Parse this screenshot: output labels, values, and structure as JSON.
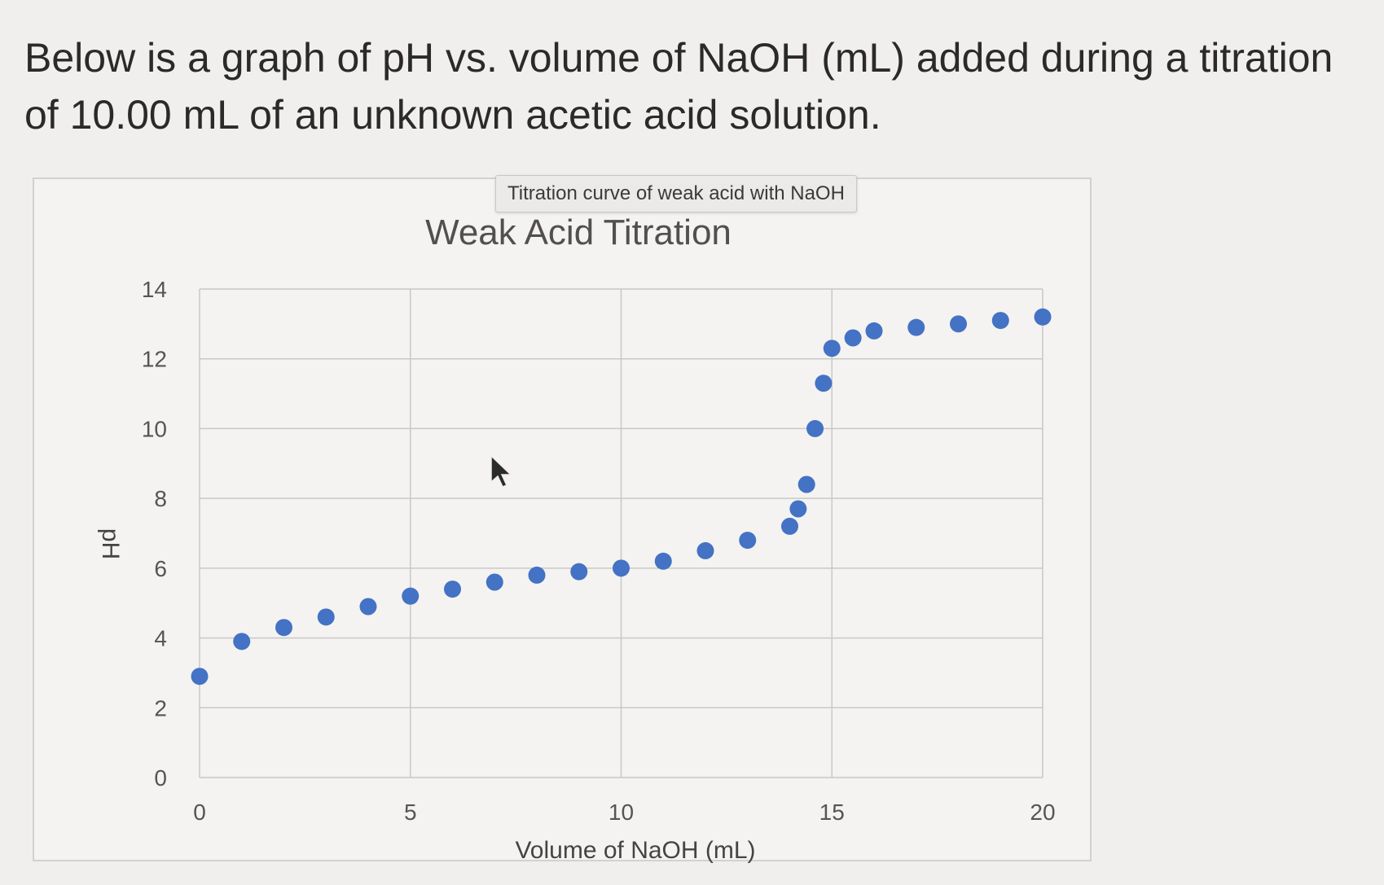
{
  "question": {
    "text": "Below is a graph of pH vs. volume of NaOH (mL) added during a titration of 10.00 mL of an unknown acetic acid solution."
  },
  "tooltip": {
    "text": "Titration curve of weak acid with NaOH"
  },
  "colors": {
    "marker": "#4472c4",
    "grid": "#c8c8c8",
    "background": "#f0efed"
  },
  "chart_data": {
    "type": "scatter",
    "title": "Weak Acid Titration",
    "xlabel": "Volume of NaOH (mL)",
    "ylabel": "pH",
    "xlim": [
      0,
      20
    ],
    "ylim": [
      0,
      14
    ],
    "xticks": [
      0,
      5,
      10,
      15,
      20
    ],
    "yticks": [
      0,
      2,
      4,
      6,
      8,
      10,
      12,
      14
    ],
    "grid": true,
    "legend": "none",
    "series": [
      {
        "x": [
          0,
          1,
          2,
          3,
          4,
          5,
          6,
          7,
          8,
          9,
          10,
          11,
          12,
          13,
          14,
          14.2,
          14.4,
          14.6,
          14.8,
          15,
          15.5,
          16,
          17,
          18,
          19,
          20
        ],
        "y": [
          2.9,
          3.9,
          4.3,
          4.6,
          4.9,
          5.2,
          5.4,
          5.6,
          5.8,
          5.9,
          6.0,
          6.2,
          6.5,
          6.8,
          7.2,
          7.7,
          8.4,
          10.0,
          11.3,
          12.3,
          12.6,
          12.8,
          12.9,
          13.0,
          13.1,
          13.2
        ]
      }
    ]
  }
}
